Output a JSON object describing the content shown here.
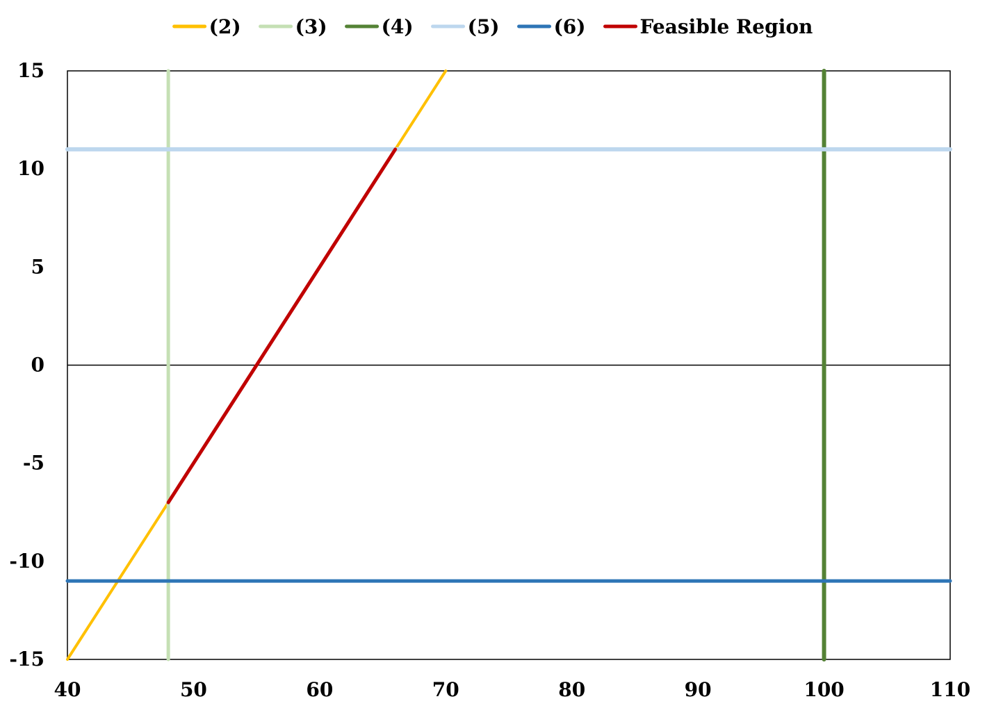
{
  "chart_data": {
    "type": "line",
    "title": "",
    "xlabel": "",
    "ylabel": "",
    "xlim": [
      40,
      110
    ],
    "ylim": [
      -15,
      15
    ],
    "xticks": [
      40,
      50,
      60,
      70,
      80,
      90,
      100,
      110
    ],
    "yticks": [
      15,
      10,
      5,
      0,
      -5,
      -10,
      -15
    ],
    "grid": false,
    "zero_line": true,
    "legend_position": "top",
    "series": [
      {
        "name": "(2)",
        "color": "#FFC000",
        "width": 4,
        "points": [
          [
            40,
            -15
          ],
          [
            70,
            15
          ]
        ]
      },
      {
        "name": "(3)",
        "color": "#C5E0B4",
        "width": 5,
        "points": [
          [
            48,
            -15
          ],
          [
            48,
            15
          ]
        ]
      },
      {
        "name": "(4)",
        "color": "#548235",
        "width": 6,
        "points": [
          [
            100,
            -15
          ],
          [
            100,
            15
          ]
        ]
      },
      {
        "name": "(5)",
        "color": "#BDD7EE",
        "width": 6,
        "points": [
          [
            40,
            11
          ],
          [
            110,
            11
          ]
        ]
      },
      {
        "name": "(6)",
        "color": "#2E75B6",
        "width": 5,
        "points": [
          [
            40,
            -11
          ],
          [
            110,
            -11
          ]
        ]
      },
      {
        "name": "Feasible Region",
        "color": "#C00000",
        "width": 5,
        "points": [
          [
            48,
            -7
          ],
          [
            66,
            11
          ]
        ]
      }
    ]
  }
}
